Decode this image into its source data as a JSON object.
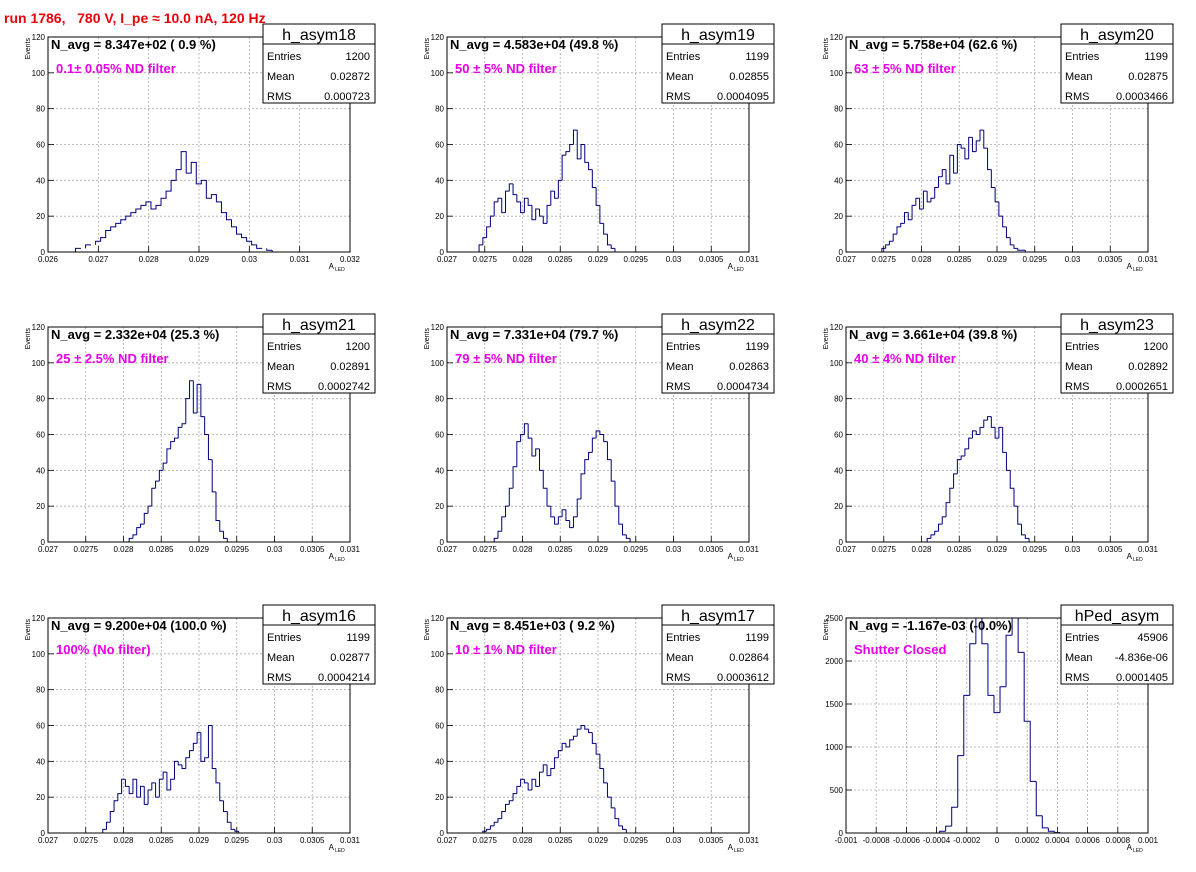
{
  "header": {
    "title": "run 1786,   780 V, I_pe ≈ 10.0 nA, 120 Hz"
  },
  "colors": {
    "hist": "#00007f",
    "annotation": "#e800e8",
    "header": "#e8000b",
    "grid": "#aaaaaa"
  },
  "chart_data": [
    {
      "type": "bar",
      "hist_name": "h_asym18",
      "n_avg": "N_avg = 8.347e+02 ( 0.9 %)",
      "annotation": "0.1± 0.05% ND filter",
      "stats": {
        "entries": "1200",
        "mean": "0.02872",
        "rms": "0.000723"
      },
      "ylabel": "Events",
      "xlabel": "A",
      "xlabel_sub": "LED",
      "xlim": [
        0.026,
        0.032
      ],
      "ylim": [
        0,
        120
      ],
      "xticks": [
        0.026,
        0.027,
        0.028,
        0.029,
        0.03,
        0.031,
        0.032
      ],
      "xtick_labels": [
        "0.026",
        "0.027",
        "0.028",
        "0.029",
        "0.03",
        "0.031",
        "0.032"
      ],
      "yticks": [
        0,
        20,
        40,
        60,
        80,
        100,
        120
      ],
      "x": [
        0.0266,
        0.0268,
        0.027,
        0.0271,
        0.0272,
        0.0273,
        0.0274,
        0.0275,
        0.0276,
        0.0277,
        0.0278,
        0.0279,
        0.028,
        0.0281,
        0.0282,
        0.0283,
        0.0284,
        0.0285,
        0.0286,
        0.0287,
        0.0288,
        0.0289,
        0.029,
        0.0291,
        0.0292,
        0.0293,
        0.0294,
        0.0295,
        0.0296,
        0.0297,
        0.0298,
        0.0299,
        0.03,
        0.0301,
        0.0302,
        0.0304
      ],
      "values": [
        2,
        4,
        6,
        8,
        12,
        14,
        16,
        18,
        20,
        22,
        24,
        26,
        28,
        24,
        26,
        30,
        34,
        40,
        46,
        56,
        44,
        50,
        38,
        40,
        30,
        32,
        28,
        22,
        18,
        14,
        10,
        8,
        6,
        4,
        2,
        1
      ]
    },
    {
      "type": "bar",
      "hist_name": "h_asym19",
      "n_avg": "N_avg = 4.583e+04 (49.8 %)",
      "annotation": "50 ± 5% ND filter",
      "stats": {
        "entries": "1199",
        "mean": "0.02855",
        "rms": "0.0004095"
      },
      "ylabel": "Events",
      "xlabel": "A",
      "xlabel_sub": "LED",
      "xlim": [
        0.027,
        0.031
      ],
      "ylim": [
        0,
        120
      ],
      "xticks": [
        0.027,
        0.0275,
        0.028,
        0.0285,
        0.029,
        0.0295,
        0.03,
        0.0305,
        0.031
      ],
      "xtick_labels": [
        "0.027",
        "0.0275",
        "0.028",
        "0.0285",
        "0.029",
        "0.0295",
        "0.03",
        "0.0305",
        "0.031"
      ],
      "yticks": [
        0,
        20,
        40,
        60,
        80,
        100,
        120
      ],
      "x": [
        0.02745,
        0.0275,
        0.02755,
        0.0276,
        0.02765,
        0.0277,
        0.02775,
        0.0278,
        0.02785,
        0.0279,
        0.02795,
        0.028,
        0.02805,
        0.0281,
        0.02815,
        0.0282,
        0.02825,
        0.0283,
        0.02835,
        0.0284,
        0.02845,
        0.0285,
        0.02855,
        0.0286,
        0.02865,
        0.0287,
        0.02875,
        0.0288,
        0.02885,
        0.0289,
        0.02895,
        0.029,
        0.02905,
        0.0291,
        0.02915,
        0.0292
      ],
      "values": [
        4,
        8,
        14,
        20,
        28,
        30,
        22,
        34,
        38,
        32,
        28,
        22,
        30,
        26,
        18,
        24,
        20,
        16,
        26,
        34,
        30,
        40,
        54,
        56,
        60,
        68,
        52,
        60,
        50,
        46,
        36,
        26,
        16,
        10,
        4,
        2
      ]
    },
    {
      "type": "bar",
      "hist_name": "h_asym20",
      "n_avg": "N_avg = 5.758e+04 (62.6 %)",
      "annotation": "63 ± 5% ND filter",
      "stats": {
        "entries": "1199",
        "mean": "0.02875",
        "rms": "0.0003466"
      },
      "ylabel": "Events",
      "xlabel": "A",
      "xlabel_sub": "LED",
      "xlim": [
        0.027,
        0.031
      ],
      "ylim": [
        0,
        120
      ],
      "xticks": [
        0.027,
        0.0275,
        0.028,
        0.0285,
        0.029,
        0.0295,
        0.03,
        0.0305,
        0.031
      ],
      "xtick_labels": [
        "0.027",
        "0.0275",
        "0.028",
        "0.0285",
        "0.029",
        "0.0295",
        "0.03",
        "0.0305",
        "0.031"
      ],
      "yticks": [
        0,
        20,
        40,
        60,
        80,
        100,
        120
      ],
      "x": [
        0.0275,
        0.02755,
        0.0276,
        0.02765,
        0.0277,
        0.02775,
        0.0278,
        0.02785,
        0.0279,
        0.02795,
        0.028,
        0.02805,
        0.0281,
        0.02815,
        0.0282,
        0.02825,
        0.0283,
        0.02835,
        0.0284,
        0.02845,
        0.0285,
        0.02855,
        0.0286,
        0.02865,
        0.0287,
        0.02875,
        0.0288,
        0.02885,
        0.0289,
        0.02895,
        0.029,
        0.02905,
        0.0291,
        0.02915,
        0.0292,
        0.02925,
        0.0293,
        0.02935
      ],
      "values": [
        2,
        4,
        6,
        10,
        14,
        16,
        22,
        18,
        26,
        30,
        24,
        34,
        28,
        30,
        36,
        42,
        46,
        38,
        54,
        44,
        60,
        58,
        52,
        64,
        56,
        62,
        68,
        58,
        46,
        36,
        28,
        20,
        14,
        8,
        4,
        2,
        1,
        1
      ]
    },
    {
      "type": "bar",
      "hist_name": "h_asym21",
      "n_avg": "N_avg = 2.332e+04 (25.3 %)",
      "annotation": "25 ± 2.5% ND filter",
      "stats": {
        "entries": "1200",
        "mean": "0.02891",
        "rms": "0.0002742"
      },
      "ylabel": "Events",
      "xlabel": "A",
      "xlabel_sub": "LED",
      "xlim": [
        0.027,
        0.031
      ],
      "ylim": [
        0,
        120
      ],
      "xticks": [
        0.027,
        0.0275,
        0.028,
        0.0285,
        0.029,
        0.0295,
        0.03,
        0.0305,
        0.031
      ],
      "xtick_labels": [
        "0.027",
        "0.0275",
        "0.028",
        "0.0285",
        "0.029",
        "0.0295",
        "0.03",
        "0.0305",
        "0.031"
      ],
      "yticks": [
        0,
        20,
        40,
        60,
        80,
        100,
        120
      ],
      "x": [
        0.0281,
        0.02815,
        0.0282,
        0.02825,
        0.0283,
        0.02835,
        0.0284,
        0.02845,
        0.0285,
        0.02855,
        0.0286,
        0.02865,
        0.0287,
        0.02875,
        0.0288,
        0.02885,
        0.0289,
        0.02895,
        0.029,
        0.02905,
        0.0291,
        0.02915,
        0.0292,
        0.02925,
        0.0293,
        0.02935
      ],
      "values": [
        2,
        4,
        8,
        10,
        16,
        20,
        30,
        34,
        40,
        44,
        52,
        56,
        58,
        64,
        66,
        80,
        90,
        72,
        88,
        70,
        60,
        46,
        28,
        12,
        6,
        2
      ]
    },
    {
      "type": "bar",
      "hist_name": "h_asym22",
      "n_avg": "N_avg = 7.331e+04 (79.7 %)",
      "annotation": "79 ± 5% ND filter",
      "stats": {
        "entries": "1199",
        "mean": "0.02863",
        "rms": "0.0004734"
      },
      "ylabel": "Events",
      "xlabel": "A",
      "xlabel_sub": "LED",
      "xlim": [
        0.027,
        0.031
      ],
      "ylim": [
        0,
        120
      ],
      "xticks": [
        0.027,
        0.0275,
        0.028,
        0.0285,
        0.029,
        0.0295,
        0.03,
        0.0305,
        0.031
      ],
      "xtick_labels": [
        "0.027",
        "0.0275",
        "0.028",
        "0.0285",
        "0.029",
        "0.0295",
        "0.03",
        "0.0305",
        "0.031"
      ],
      "yticks": [
        0,
        20,
        40,
        60,
        80,
        100,
        120
      ],
      "x": [
        0.02765,
        0.0277,
        0.02775,
        0.0278,
        0.02785,
        0.0279,
        0.02795,
        0.028,
        0.02805,
        0.0281,
        0.02815,
        0.0282,
        0.02825,
        0.0283,
        0.02835,
        0.0284,
        0.02845,
        0.0285,
        0.02855,
        0.0286,
        0.02865,
        0.0287,
        0.02875,
        0.0288,
        0.02885,
        0.0289,
        0.02895,
        0.029,
        0.02905,
        0.0291,
        0.02915,
        0.0292,
        0.02925,
        0.0293,
        0.02935,
        0.0294
      ],
      "values": [
        2,
        6,
        14,
        20,
        30,
        42,
        56,
        60,
        66,
        58,
        48,
        52,
        40,
        30,
        20,
        14,
        10,
        14,
        18,
        12,
        8,
        14,
        24,
        38,
        46,
        50,
        58,
        62,
        60,
        56,
        46,
        34,
        20,
        10,
        4,
        2
      ]
    },
    {
      "type": "bar",
      "hist_name": "h_asym23",
      "n_avg": "N_avg = 3.661e+04 (39.8 %)",
      "annotation": "40 ± 4% ND filter",
      "stats": {
        "entries": "1200",
        "mean": "0.02892",
        "rms": "0.0002651"
      },
      "ylabel": "Events",
      "xlabel": "A",
      "xlabel_sub": "LED",
      "xlim": [
        0.027,
        0.031
      ],
      "ylim": [
        0,
        120
      ],
      "xticks": [
        0.027,
        0.0275,
        0.028,
        0.0285,
        0.029,
        0.0295,
        0.03,
        0.0305,
        0.031
      ],
      "xtick_labels": [
        "0.027",
        "0.0275",
        "0.028",
        "0.0285",
        "0.029",
        "0.0295",
        "0.03",
        "0.0305",
        "0.031"
      ],
      "yticks": [
        0,
        20,
        40,
        60,
        80,
        100,
        120
      ],
      "x": [
        0.0281,
        0.02815,
        0.0282,
        0.02825,
        0.0283,
        0.02835,
        0.0284,
        0.02845,
        0.0285,
        0.02855,
        0.0286,
        0.02865,
        0.0287,
        0.02875,
        0.0288,
        0.02885,
        0.0289,
        0.02895,
        0.029,
        0.02905,
        0.0291,
        0.02915,
        0.0292,
        0.02925,
        0.0293,
        0.02935,
        0.0294
      ],
      "values": [
        2,
        4,
        6,
        10,
        14,
        22,
        30,
        38,
        46,
        48,
        52,
        58,
        62,
        60,
        64,
        68,
        70,
        64,
        58,
        64,
        50,
        40,
        30,
        20,
        10,
        4,
        2
      ]
    },
    {
      "type": "bar",
      "hist_name": "h_asym16",
      "n_avg": "N_avg = 9.200e+04 (100.0 %)",
      "annotation": "100% (No filter)",
      "stats": {
        "entries": "1199",
        "mean": "0.02877",
        "rms": "0.0004214"
      },
      "ylabel": "Events",
      "xlabel": "A",
      "xlabel_sub": "LED",
      "xlim": [
        0.027,
        0.031
      ],
      "ylim": [
        0,
        120
      ],
      "xticks": [
        0.027,
        0.0275,
        0.028,
        0.0285,
        0.029,
        0.0295,
        0.03,
        0.0305,
        0.031
      ],
      "xtick_labels": [
        "0.027",
        "0.0275",
        "0.028",
        "0.0285",
        "0.029",
        "0.0295",
        "0.03",
        "0.0305",
        "0.031"
      ],
      "yticks": [
        0,
        20,
        40,
        60,
        80,
        100,
        120
      ],
      "x": [
        0.02775,
        0.0278,
        0.02785,
        0.0279,
        0.02795,
        0.028,
        0.02805,
        0.0281,
        0.02815,
        0.0282,
        0.02825,
        0.0283,
        0.02835,
        0.0284,
        0.02845,
        0.0285,
        0.02855,
        0.0286,
        0.02865,
        0.0287,
        0.02875,
        0.0288,
        0.02885,
        0.0289,
        0.02895,
        0.029,
        0.02905,
        0.0291,
        0.02915,
        0.0292,
        0.02925,
        0.0293,
        0.02935,
        0.0294,
        0.02945,
        0.0295
      ],
      "values": [
        2,
        6,
        12,
        18,
        22,
        30,
        26,
        22,
        30,
        20,
        26,
        16,
        24,
        28,
        20,
        30,
        34,
        24,
        30,
        40,
        38,
        36,
        42,
        46,
        50,
        56,
        40,
        42,
        60,
        36,
        28,
        18,
        12,
        6,
        2,
        1
      ]
    },
    {
      "type": "bar",
      "hist_name": "h_asym17",
      "n_avg": "N_avg = 8.451e+03 ( 9.2 %)",
      "annotation": "10 ± 1% ND filter",
      "stats": {
        "entries": "1199",
        "mean": "0.02864",
        "rms": "0.0003612"
      },
      "ylabel": "Events",
      "xlabel": "A",
      "xlabel_sub": "LED",
      "xlim": [
        0.027,
        0.031
      ],
      "ylim": [
        0,
        120
      ],
      "xticks": [
        0.027,
        0.0275,
        0.028,
        0.0285,
        0.029,
        0.0295,
        0.03,
        0.0305,
        0.031
      ],
      "xtick_labels": [
        "0.027",
        "0.0275",
        "0.028",
        "0.0285",
        "0.029",
        "0.0295",
        "0.03",
        "0.0305",
        "0.031"
      ],
      "yticks": [
        0,
        20,
        40,
        60,
        80,
        100,
        120
      ],
      "x": [
        0.0275,
        0.02755,
        0.0276,
        0.02765,
        0.0277,
        0.02775,
        0.0278,
        0.02785,
        0.0279,
        0.02795,
        0.028,
        0.02805,
        0.0281,
        0.02815,
        0.0282,
        0.02825,
        0.0283,
        0.02835,
        0.0284,
        0.02845,
        0.0285,
        0.02855,
        0.0286,
        0.02865,
        0.0287,
        0.02875,
        0.0288,
        0.02885,
        0.0289,
        0.02895,
        0.029,
        0.02905,
        0.0291,
        0.02915,
        0.0292,
        0.02925,
        0.0293,
        0.02935
      ],
      "values": [
        1,
        2,
        4,
        6,
        8,
        12,
        16,
        18,
        22,
        26,
        30,
        28,
        24,
        30,
        26,
        34,
        38,
        32,
        36,
        42,
        46,
        50,
        48,
        52,
        54,
        58,
        60,
        58,
        56,
        50,
        44,
        36,
        28,
        20,
        14,
        8,
        4,
        2
      ]
    },
    {
      "type": "bar",
      "hist_name": "hPed_asym",
      "n_avg": "N_avg = -1.167e-03 (-0.0%)",
      "annotation": "Shutter Closed",
      "stats": {
        "entries": "45906",
        "mean": "-4.836e-06",
        "rms": "0.0001405"
      },
      "ylabel": "Events",
      "xlabel": "A",
      "xlabel_sub": "LED",
      "xlim": [
        -0.001,
        0.001
      ],
      "ylim": [
        0,
        2500
      ],
      "xticks": [
        -0.001,
        -0.0008,
        -0.0006,
        -0.0004,
        -0.0002,
        0,
        0.0002,
        0.0004,
        0.0006,
        0.0008,
        0.001
      ],
      "xtick_labels": [
        "-0.001",
        "-0.0008",
        "-0.0006",
        "-0.0004",
        "-0.0002",
        "0",
        "0.0002",
        "0.0004",
        "0.0006",
        "0.0008",
        "0.001"
      ],
      "yticks": [
        0,
        500,
        1000,
        1500,
        2000,
        2500
      ],
      "x": [
        -0.00036,
        -0.00032,
        -0.00028,
        -0.00024,
        -0.0002,
        -0.00016,
        -0.00012,
        -8e-05,
        -4e-05,
        0,
        4e-05,
        8e-05,
        0.00012,
        0.00016,
        0.0002,
        0.00024,
        0.00028,
        0.00032,
        0.00036,
        0.0004
      ],
      "values": [
        20,
        80,
        300,
        900,
        1600,
        2200,
        2500,
        2200,
        1600,
        1400,
        1700,
        2300,
        2500,
        2100,
        1300,
        600,
        200,
        60,
        20,
        5
      ]
    }
  ]
}
